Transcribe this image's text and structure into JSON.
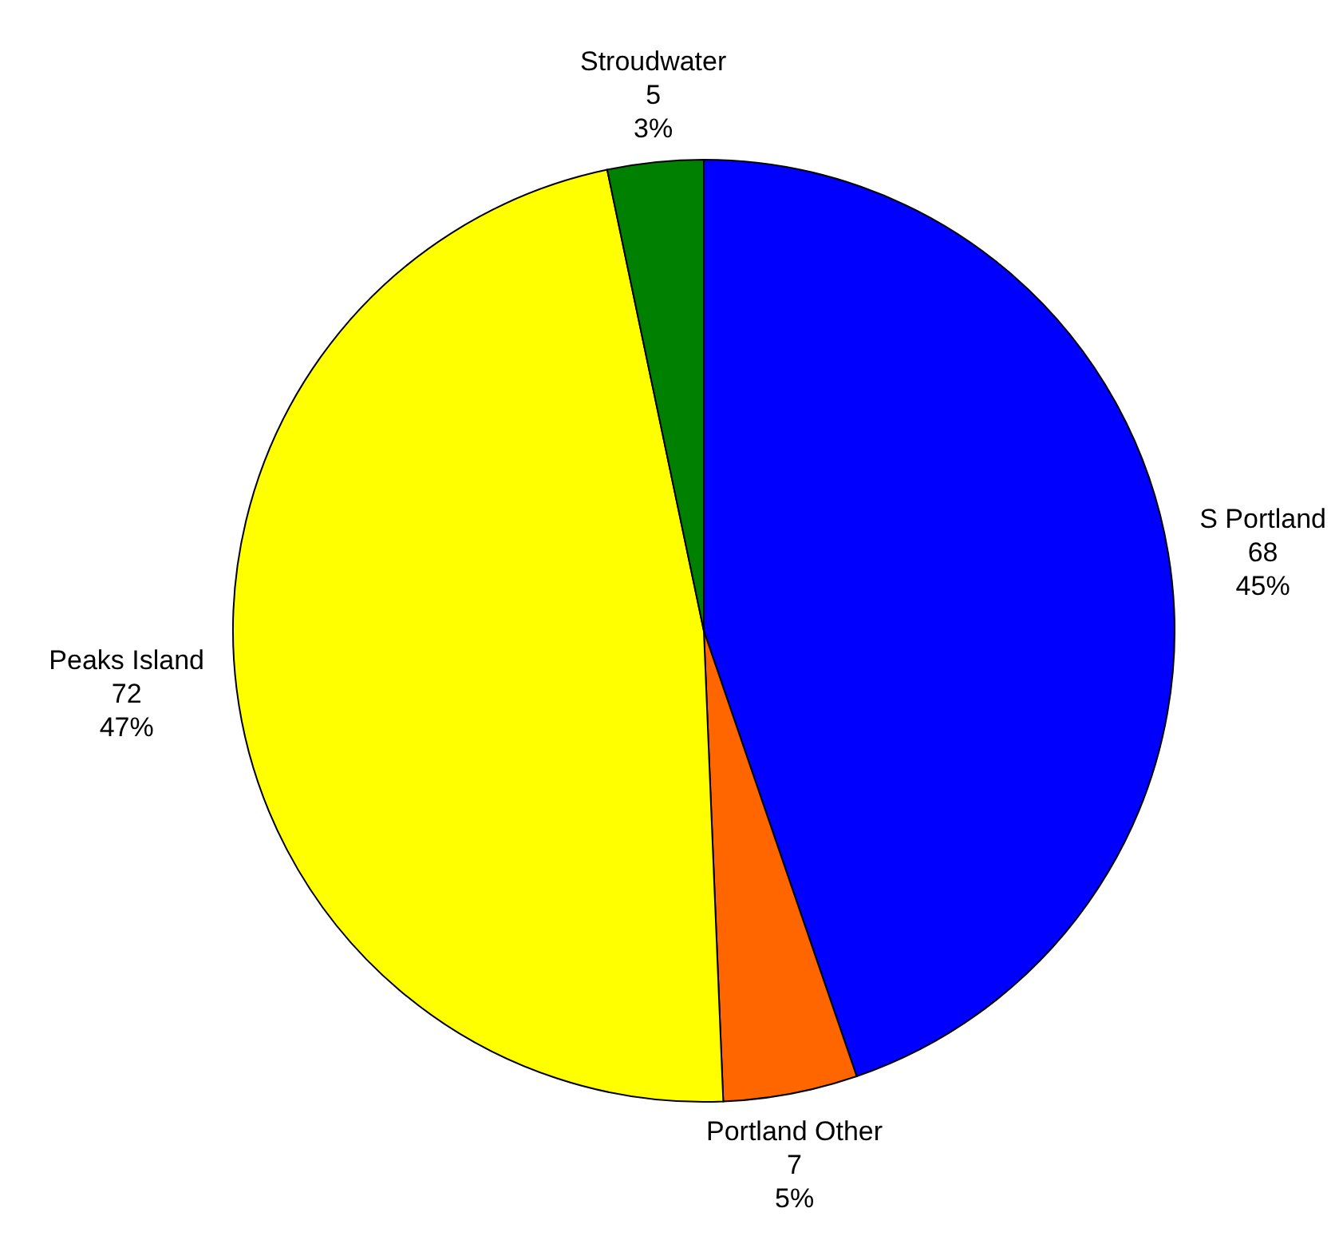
{
  "chart_data": {
    "type": "pie",
    "categories": [
      "S Portland",
      "Portland Other",
      "Peaks Island",
      "Stroudwater"
    ],
    "values": [
      68,
      7,
      72,
      5
    ],
    "colors": [
      "#0000ff",
      "#ff6600",
      "#ffff00",
      "#008000"
    ],
    "value_labels": [
      "68\n45%",
      "7\n5%",
      "72\n47%",
      "5\n3%"
    ],
    "legend": false
  }
}
